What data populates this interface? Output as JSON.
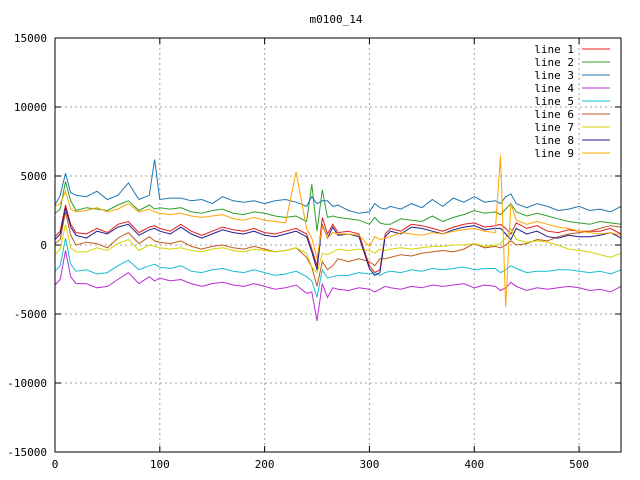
{
  "chart_data": {
    "type": "line",
    "title": "m0100_14",
    "xlabel": "",
    "ylabel": "",
    "xlim": [
      0,
      540
    ],
    "ylim": [
      -15000,
      15000
    ],
    "x_ticks": [
      0,
      100,
      200,
      300,
      400,
      500
    ],
    "y_ticks": [
      -15000,
      -10000,
      -5000,
      0,
      5000,
      10000,
      15000
    ],
    "grid": true,
    "legend_position": "top-right",
    "x": [
      0,
      5,
      10,
      15,
      20,
      30,
      40,
      50,
      60,
      70,
      80,
      90,
      95,
      100,
      110,
      120,
      130,
      140,
      150,
      160,
      170,
      180,
      190,
      200,
      210,
      220,
      230,
      240,
      245,
      250,
      255,
      260,
      265,
      270,
      280,
      290,
      300,
      305,
      310,
      315,
      320,
      330,
      340,
      350,
      360,
      370,
      380,
      390,
      400,
      410,
      420,
      425,
      430,
      435,
      440,
      450,
      460,
      470,
      480,
      490,
      500,
      510,
      520,
      530,
      540
    ],
    "series": [
      {
        "name": "line 1",
        "color": "#e41a1c",
        "values": [
          600,
          1000,
          2900,
          1500,
          900,
          800,
          1200,
          900,
          1500,
          1700,
          900,
          1300,
          1400,
          1200,
          1000,
          1500,
          1000,
          700,
          1000,
          1300,
          1100,
          1000,
          1200,
          900,
          800,
          1000,
          1200,
          800,
          -300,
          -1500,
          2000,
          800,
          1500,
          900,
          1000,
          800,
          -1500,
          -2000,
          -1800,
          800,
          1200,
          1000,
          1500,
          1400,
          1200,
          1000,
          1300,
          1500,
          1600,
          1300,
          1400,
          1500,
          1200,
          800,
          1600,
          1200,
          1400,
          1000,
          900,
          1100,
          1000,
          1000,
          1000,
          1200,
          800
        ]
      },
      {
        "name": "line 2",
        "color": "#2ca02c",
        "values": [
          2300,
          2600,
          4600,
          3200,
          2500,
          2700,
          2600,
          2500,
          2900,
          3200,
          2500,
          2900,
          2600,
          2700,
          2600,
          2700,
          2400,
          2300,
          2500,
          2600,
          2300,
          2200,
          2400,
          2300,
          2100,
          2000,
          2100,
          1700,
          4400,
          1000,
          4000,
          2000,
          2100,
          2000,
          1900,
          1800,
          1500,
          2000,
          1600,
          1500,
          1500,
          1900,
          1800,
          1700,
          2100,
          1700,
          2000,
          2200,
          2500,
          2300,
          2400,
          2200,
          2600,
          3000,
          2400,
          2100,
          2300,
          2100,
          1900,
          1700,
          1600,
          1500,
          1700,
          1600,
          1500
        ]
      },
      {
        "name": "line 3",
        "color": "#1f77b4",
        "values": [
          2900,
          3600,
          5200,
          3800,
          3600,
          3500,
          3900,
          3300,
          3600,
          4500,
          3300,
          3600,
          6200,
          3300,
          3400,
          3400,
          3200,
          3300,
          3000,
          3500,
          3200,
          3100,
          3200,
          3000,
          3200,
          3300,
          3100,
          2800,
          3500,
          3000,
          3200,
          3200,
          2800,
          2900,
          2500,
          2300,
          2400,
          3000,
          2700,
          2600,
          2800,
          2600,
          3000,
          2700,
          3300,
          2800,
          3400,
          3100,
          3500,
          3100,
          3200,
          3000,
          3500,
          3700,
          3000,
          2700,
          3000,
          2800,
          2500,
          2600,
          2800,
          2500,
          2600,
          2400,
          2800
        ]
      },
      {
        "name": "line 4",
        "color": "#b82ed2",
        "values": [
          -2900,
          -2500,
          -400,
          -2300,
          -2800,
          -2800,
          -3100,
          -3000,
          -2500,
          -2000,
          -2800,
          -2300,
          -2600,
          -2400,
          -2600,
          -2500,
          -2800,
          -3000,
          -2800,
          -2700,
          -2900,
          -3000,
          -2800,
          -3000,
          -3200,
          -3100,
          -2900,
          -3500,
          -3400,
          -5500,
          -2800,
          -3800,
          -3100,
          -3200,
          -3300,
          -3100,
          -3200,
          -3400,
          -3200,
          -3000,
          -3100,
          -3200,
          -3000,
          -3100,
          -2900,
          -3000,
          -2900,
          -2800,
          -3100,
          -2900,
          -3000,
          -3300,
          -3100,
          -2700,
          -3000,
          -3300,
          -3100,
          -3200,
          -3100,
          -3000,
          -3100,
          -3300,
          -3200,
          -3400,
          -3000
        ]
      },
      {
        "name": "line 5",
        "color": "#17becf",
        "values": [
          -1900,
          -1500,
          500,
          -1400,
          -1900,
          -1800,
          -2100,
          -2000,
          -1500,
          -1100,
          -1800,
          -1500,
          -1400,
          -1600,
          -1700,
          -1500,
          -1900,
          -2000,
          -1800,
          -1700,
          -1900,
          -2000,
          -1800,
          -2000,
          -2200,
          -2100,
          -1900,
          -2300,
          -2600,
          -3800,
          -1800,
          -2400,
          -2300,
          -2200,
          -2200,
          -2000,
          -2100,
          -2000,
          -2200,
          -2000,
          -1900,
          -2000,
          -1800,
          -1900,
          -1700,
          -1800,
          -1700,
          -1600,
          -1800,
          -1700,
          -1700,
          -2000,
          -1800,
          -1500,
          -1700,
          -2000,
          -1900,
          -1900,
          -1800,
          -1800,
          -1900,
          -2000,
          -1900,
          -2100,
          -1800
        ]
      },
      {
        "name": "line 6",
        "color": "#bf5b17",
        "values": [
          100,
          400,
          2400,
          700,
          0,
          200,
          100,
          -200,
          500,
          900,
          100,
          600,
          300,
          200,
          100,
          300,
          -100,
          -300,
          -100,
          0,
          -200,
          -300,
          -100,
          -300,
          -500,
          -400,
          -200,
          -900,
          -1600,
          -3000,
          -1200,
          -1800,
          -1500,
          -1000,
          -1200,
          -1000,
          -1200,
          -1500,
          -1000,
          -1000,
          -900,
          -700,
          -800,
          -600,
          -500,
          -400,
          -500,
          -300,
          100,
          -200,
          -100,
          -200,
          0,
          300,
          0,
          100,
          400,
          300,
          600,
          800,
          900,
          1000,
          1200,
          1400,
          1300
        ]
      },
      {
        "name": "line 7",
        "color": "#d4d400",
        "values": [
          -700,
          -300,
          1500,
          -200,
          -500,
          -500,
          -200,
          -400,
          100,
          400,
          -400,
          0,
          -100,
          -200,
          -300,
          -200,
          -400,
          -500,
          -300,
          -200,
          -400,
          -500,
          -300,
          -400,
          -500,
          -400,
          -200,
          -600,
          -1600,
          -2000,
          -600,
          -700,
          -500,
          -300,
          -400,
          -300,
          -400,
          -600,
          -300,
          -400,
          -300,
          -200,
          -300,
          -200,
          -100,
          -100,
          0,
          0,
          100,
          -100,
          0,
          100,
          500,
          1200,
          400,
          200,
          300,
          200,
          0,
          -300,
          -400,
          -500,
          -700,
          -900,
          -600
        ]
      },
      {
        "name": "line 8",
        "color": "#1c1c8c",
        "values": [
          400,
          800,
          2700,
          1300,
          700,
          500,
          1000,
          800,
          1300,
          1500,
          700,
          1100,
          1200,
          1000,
          800,
          1300,
          800,
          500,
          800,
          1100,
          900,
          800,
          1000,
          700,
          600,
          800,
          1000,
          600,
          -500,
          -1800,
          1500,
          500,
          1300,
          700,
          800,
          600,
          -1700,
          -2200,
          -2000,
          600,
          1000,
          800,
          1300,
          1200,
          1000,
          800,
          1100,
          1300,
          1400,
          1100,
          1200,
          1200,
          800,
          400,
          1200,
          800,
          1000,
          600,
          500,
          700,
          600,
          600,
          700,
          900,
          500
        ]
      },
      {
        "name": "line 9",
        "color": "#ffa500",
        "values": [
          2800,
          3000,
          3900,
          2600,
          2400,
          2500,
          2700,
          2400,
          2600,
          3000,
          2400,
          2600,
          2400,
          2300,
          2200,
          2300,
          2100,
          2000,
          2100,
          2200,
          1900,
          1800,
          2000,
          1800,
          1700,
          1600,
          5300,
          1200,
          500,
          -1000,
          1400,
          500,
          900,
          800,
          800,
          700,
          -100,
          600,
          400,
          500,
          600,
          900,
          800,
          700,
          900,
          800,
          1000,
          1100,
          1200,
          1000,
          900,
          6500,
          -4500,
          3000,
          1800,
          1500,
          1700,
          1500,
          1300,
          1200,
          1000,
          900,
          800,
          900,
          700
        ]
      }
    ]
  }
}
